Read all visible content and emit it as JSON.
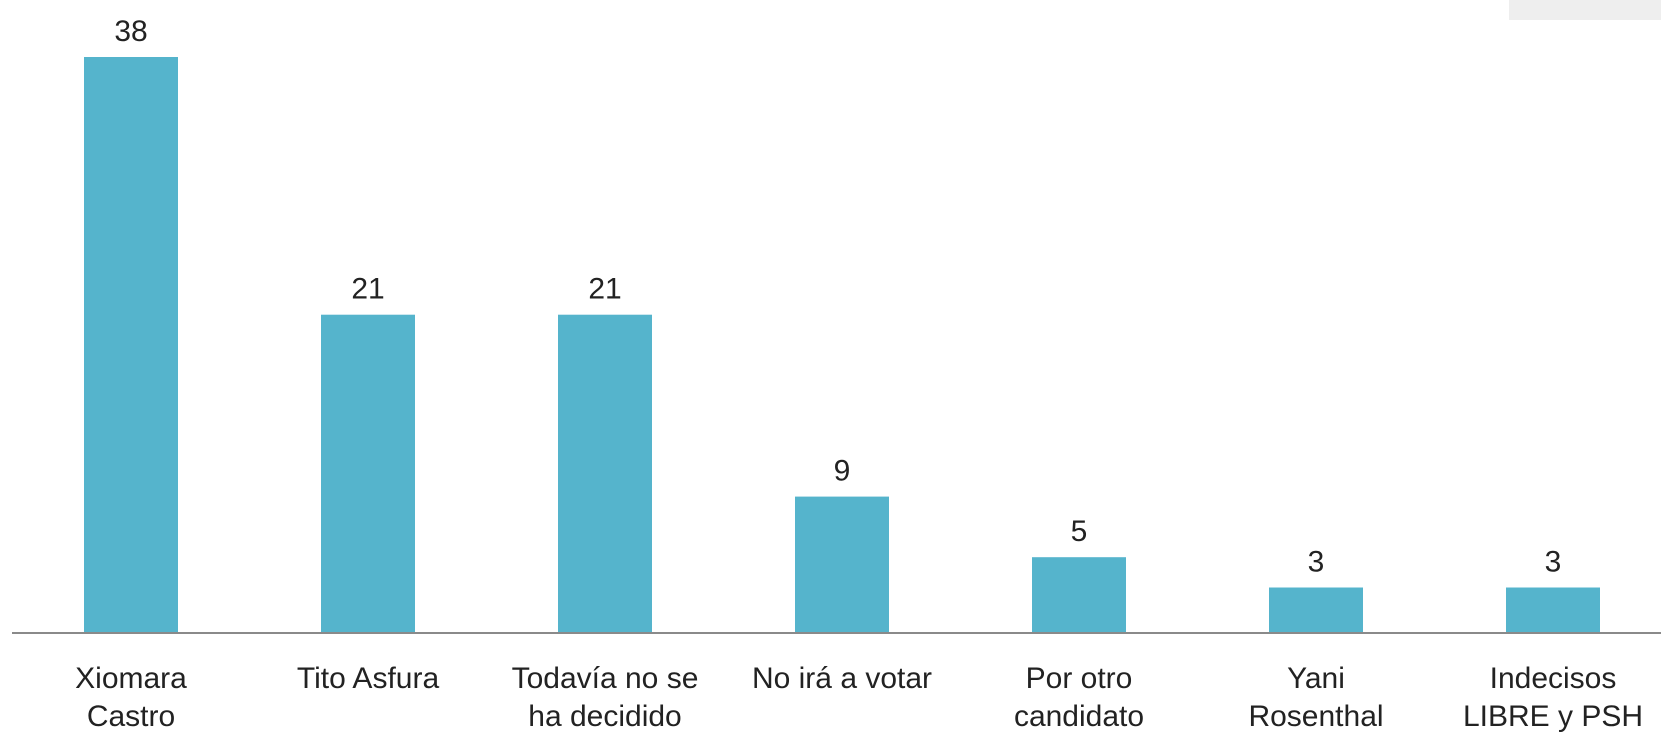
{
  "chart_data": {
    "type": "bar",
    "categories": [
      [
        "Xiomara",
        "Castro"
      ],
      [
        "Tito Asfura"
      ],
      [
        "Todavía no se",
        "ha decidido"
      ],
      [
        "No irá a votar"
      ],
      [
        "Por otro",
        "candidato"
      ],
      [
        "Yani",
        "Rosenthal"
      ],
      [
        "Indecisos",
        "LIBRE y PSH"
      ]
    ],
    "values": [
      38,
      21,
      21,
      9,
      5,
      3,
      3
    ],
    "data_labels": [
      "38",
      "21",
      "21",
      "9",
      "5",
      "3",
      "3"
    ],
    "ylim": [
      0,
      38
    ],
    "grid": false,
    "legend": "none",
    "colors": {
      "bar": "#55B4CC",
      "axis": "#8a8a8a",
      "text": "#222222"
    }
  }
}
